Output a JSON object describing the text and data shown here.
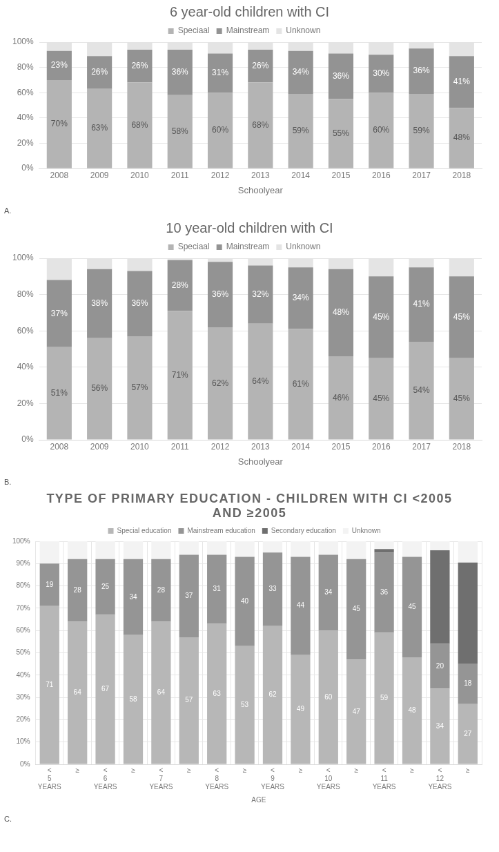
{
  "chart_data": [
    {
      "type": "bar",
      "stacked": true,
      "title": "6 year-old children with CI",
      "xlabel": "Schoolyear",
      "categories": [
        "2008",
        "2009",
        "2010",
        "2011",
        "2012",
        "2013",
        "2014",
        "2015",
        "2016",
        "2017",
        "2018"
      ],
      "series": [
        {
          "name": "Speciaal",
          "color": "#b4b4b4",
          "values": [
            70,
            63,
            68,
            58,
            60,
            68,
            59,
            55,
            60,
            59,
            48
          ],
          "value_labels": [
            "70%",
            "63%",
            "68%",
            "58%",
            "60%",
            "68%",
            "59%",
            "55%",
            "60%",
            "59%",
            "48%"
          ]
        },
        {
          "name": "Mainstream",
          "color": "#939393",
          "values": [
            23,
            26,
            26,
            36,
            31,
            26,
            34,
            36,
            30,
            36,
            41
          ],
          "value_labels": [
            "23%",
            "26%",
            "26%",
            "36%",
            "31%",
            "26%",
            "34%",
            "36%",
            "30%",
            "36%",
            "41%"
          ]
        },
        {
          "name": "Unknown",
          "color": "#e4e4e4",
          "values": [
            7,
            11,
            6,
            6,
            9,
            6,
            7,
            9,
            10,
            5,
            11
          ]
        }
      ],
      "ylim": [
        0,
        100
      ],
      "yticks": [
        {
          "value": 0,
          "label": "0%"
        },
        {
          "value": 20,
          "label": "20%"
        },
        {
          "value": 40,
          "label": "40%"
        },
        {
          "value": 60,
          "label": "60%"
        },
        {
          "value": 80,
          "label": "80%"
        },
        {
          "value": 100,
          "label": "100%"
        }
      ],
      "grid": "y",
      "legend": "top",
      "annotations": [
        "A."
      ]
    },
    {
      "type": "bar",
      "stacked": true,
      "title": "10 year-old children with CI",
      "xlabel": "Schoolyear",
      "categories": [
        "2008",
        "2009",
        "2010",
        "2011",
        "2012",
        "2013",
        "2014",
        "2015",
        "2016",
        "2017",
        "2018"
      ],
      "series": [
        {
          "name": "Speciaal",
          "color": "#b4b4b4",
          "values": [
            51,
            56,
            57,
            71,
            62,
            64,
            61,
            46,
            45,
            54,
            45
          ],
          "value_labels": [
            "51%",
            "56%",
            "57%",
            "71%",
            "62%",
            "64%",
            "61%",
            "46%",
            "45%",
            "54%",
            "45%"
          ]
        },
        {
          "name": "Mainstream",
          "color": "#939393",
          "values": [
            37,
            38,
            36,
            28,
            36,
            32,
            34,
            48,
            45,
            41,
            45
          ],
          "value_labels": [
            "37%",
            "38%",
            "36%",
            "28%",
            "36%",
            "32%",
            "34%",
            "48%",
            "45%",
            "41%",
            "45%"
          ]
        },
        {
          "name": "Unknown",
          "color": "#e4e4e4",
          "values": [
            12,
            6,
            7,
            1,
            2,
            4,
            5,
            6,
            10,
            5,
            10
          ]
        }
      ],
      "ylim": [
        0,
        100
      ],
      "yticks": [
        {
          "value": 0,
          "label": "0%"
        },
        {
          "value": 20,
          "label": "20%"
        },
        {
          "value": 40,
          "label": "40%"
        },
        {
          "value": 60,
          "label": "60%"
        },
        {
          "value": 80,
          "label": "80%"
        },
        {
          "value": 100,
          "label": "100%"
        }
      ],
      "grid": "y",
      "legend": "top",
      "annotations": [
        "B."
      ]
    },
    {
      "type": "bar",
      "stacked": true,
      "title": "TYPE OF PRIMARY EDUCATION - CHILDREN WITH CI <2005 AND ≥2005",
      "xlabel": "AGE",
      "categories": [
        "< 5 YEARS",
        "≥",
        "< 6 YEARS",
        "≥",
        "< 7 YEARS",
        "≥",
        "< 8 YEARS",
        "≥",
        "< 9 YEARS",
        "≥",
        "< 10 YEARS",
        "≥",
        "< 11 YEARS",
        "≥",
        "< 12 YEARS",
        "≥"
      ],
      "series": [
        {
          "name": "Special education",
          "color": "#b7b7b7",
          "values": [
            71,
            64,
            67,
            58,
            64,
            57,
            63,
            53,
            62,
            49,
            60,
            47,
            59,
            48,
            34,
            27
          ],
          "value_labels": [
            "71",
            "64",
            "67",
            "58",
            "64",
            "57",
            "63",
            "53",
            "62",
            "49",
            "60",
            "47",
            "59",
            "48",
            "34",
            "27"
          ]
        },
        {
          "name": "Mainstream education",
          "color": "#959595",
          "values": [
            19,
            28,
            25,
            34,
            28,
            37,
            31,
            40,
            33,
            44,
            34,
            45,
            36,
            45,
            20,
            18
          ],
          "value_labels": [
            "19",
            "28",
            "25",
            "34",
            "28",
            "37",
            "31",
            "40",
            "33",
            "44",
            "34",
            "45",
            "36",
            "45",
            "20",
            "18"
          ]
        },
        {
          "name": "Secondary education",
          "color": "#6f6f6f",
          "values": [
            null,
            null,
            null,
            null,
            null,
            null,
            null,
            null,
            null,
            null,
            null,
            null,
            1.5,
            null,
            42,
            45.5
          ]
        },
        {
          "name": "Unknown",
          "color": "#f3f3f3",
          "values": [
            10,
            8,
            8,
            8,
            8,
            6,
            6,
            7,
            5,
            7,
            6,
            8,
            3.5,
            7,
            4,
            9.5
          ]
        }
      ],
      "ylim": [
        0,
        100
      ],
      "yticks": [
        {
          "value": 0,
          "label": "0%"
        },
        {
          "value": 10,
          "label": "10%"
        },
        {
          "value": 20,
          "label": "20%"
        },
        {
          "value": 30,
          "label": "30%"
        },
        {
          "value": 40,
          "label": "40%"
        },
        {
          "value": 50,
          "label": "50%"
        },
        {
          "value": 60,
          "label": "60%"
        },
        {
          "value": 70,
          "label": "70%"
        },
        {
          "value": 80,
          "label": "80%"
        },
        {
          "value": 90,
          "label": "90%"
        },
        {
          "value": 100,
          "label": "100%"
        }
      ],
      "grid": true,
      "legend": "top",
      "annotations": [
        "C."
      ]
    }
  ]
}
